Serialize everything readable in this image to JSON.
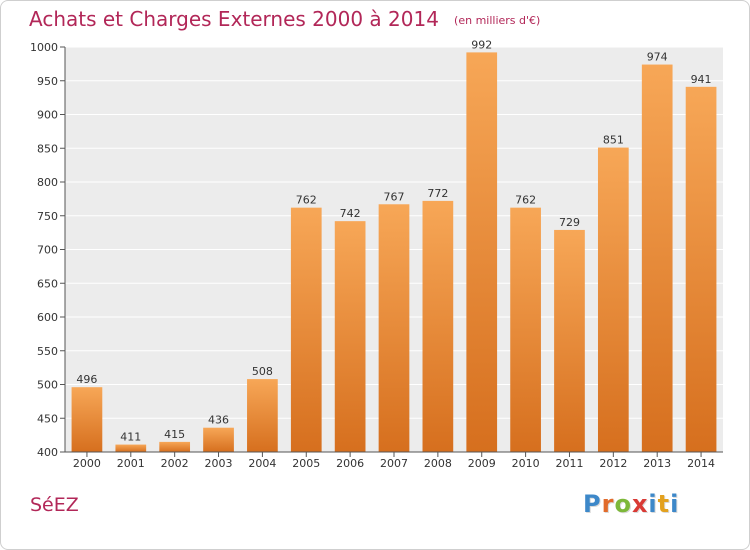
{
  "chart_data": {
    "type": "bar",
    "title": "Achats et Charges Externes 2000 à 2014",
    "unit_note": "(en milliers d'€)",
    "categories": [
      "2000",
      "2001",
      "2002",
      "2003",
      "2004",
      "2005",
      "2006",
      "2007",
      "2008",
      "2009",
      "2010",
      "2011",
      "2012",
      "2013",
      "2014"
    ],
    "values": [
      496,
      411,
      415,
      436,
      508,
      762,
      742,
      767,
      772,
      992,
      762,
      729,
      851,
      974,
      941
    ],
    "value_labels": [
      "496",
      "411",
      "415",
      "436",
      "508",
      "762",
      "742",
      "767",
      "772",
      "992",
      "762",
      "729",
      "851",
      "974",
      "941"
    ],
    "ylim": [
      400,
      1000
    ],
    "yticks": [
      400,
      450,
      500,
      550,
      600,
      650,
      700,
      750,
      800,
      850,
      900,
      950,
      1000
    ],
    "ytick_labels": [
      "400",
      "450",
      "500",
      "550",
      "600",
      "650",
      "700",
      "750",
      "800",
      "850",
      "900",
      "950",
      "1000"
    ],
    "grid": true,
    "colors": {
      "bar_light": "#f7a757",
      "bar_dark": "#d66f1e",
      "plot_background": "#ececec",
      "grid": "#ffffff",
      "title": "#b22758"
    }
  },
  "footer": {
    "location": "SéEZ",
    "brand_letters": [
      "P",
      "r",
      "o",
      "x",
      "i",
      "t",
      "i"
    ],
    "brand_colors": [
      "#3d88c9",
      "#e16b2b",
      "#7db83a",
      "#d93a35",
      "#3d88c9",
      "#e3a11f",
      "#3d88c9"
    ]
  }
}
